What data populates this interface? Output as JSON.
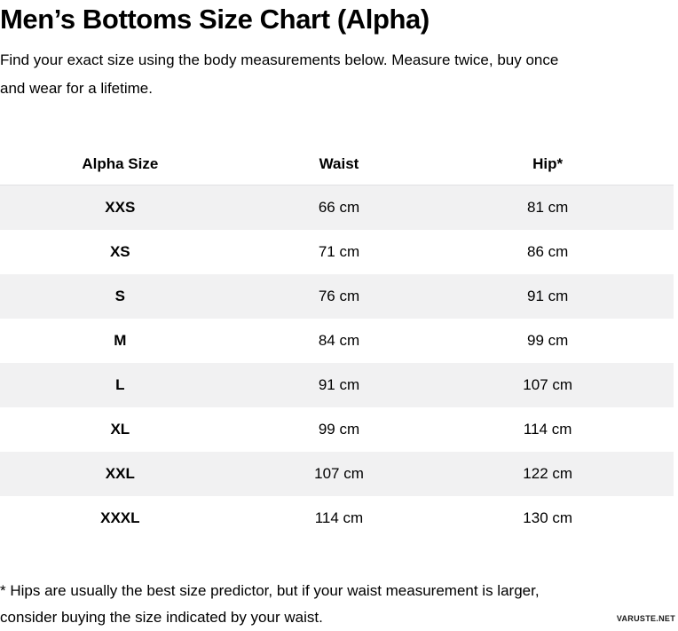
{
  "page": {
    "title": "Men’s Bottoms Size Chart (Alpha)",
    "subtitle_lines": [
      "Find your exact size using the body measurements below. Measure twice, buy once",
      "and wear for a lifetime."
    ],
    "footnote_lines": [
      "* Hips are usually the best size predictor, but if your waist measurement is larger,",
      "consider buying the size indicated by your waist."
    ],
    "watermark": "VARUSTE.NET"
  },
  "colors": {
    "text": "#000000",
    "row_alt_background": "#f1f1f2",
    "header_divider": "#e0e0e3",
    "page_background": "#ffffff"
  },
  "chart_data": {
    "type": "table",
    "title": "Men’s Bottoms Size Chart (Alpha)",
    "columns": [
      "Alpha Size",
      "Waist",
      "Hip*"
    ],
    "rows": [
      {
        "size": "XXS",
        "waist": "66 cm",
        "hip": "81 cm"
      },
      {
        "size": "XS",
        "waist": "71 cm",
        "hip": "86 cm"
      },
      {
        "size": "S",
        "waist": "76 cm",
        "hip": "91 cm"
      },
      {
        "size": "M",
        "waist": "84 cm",
        "hip": "99 cm"
      },
      {
        "size": "L",
        "waist": "91 cm",
        "hip": "107 cm"
      },
      {
        "size": "XL",
        "waist": "99 cm",
        "hip": "114 cm"
      },
      {
        "size": "XXL",
        "waist": "107 cm",
        "hip": "122 cm"
      },
      {
        "size": "XXXL",
        "waist": "114 cm",
        "hip": "130 cm"
      }
    ],
    "waist_cm": [
      66,
      71,
      76,
      84,
      91,
      99,
      107,
      114
    ],
    "hip_cm": [
      81,
      86,
      91,
      99,
      107,
      114,
      122,
      130
    ],
    "units": "cm"
  }
}
